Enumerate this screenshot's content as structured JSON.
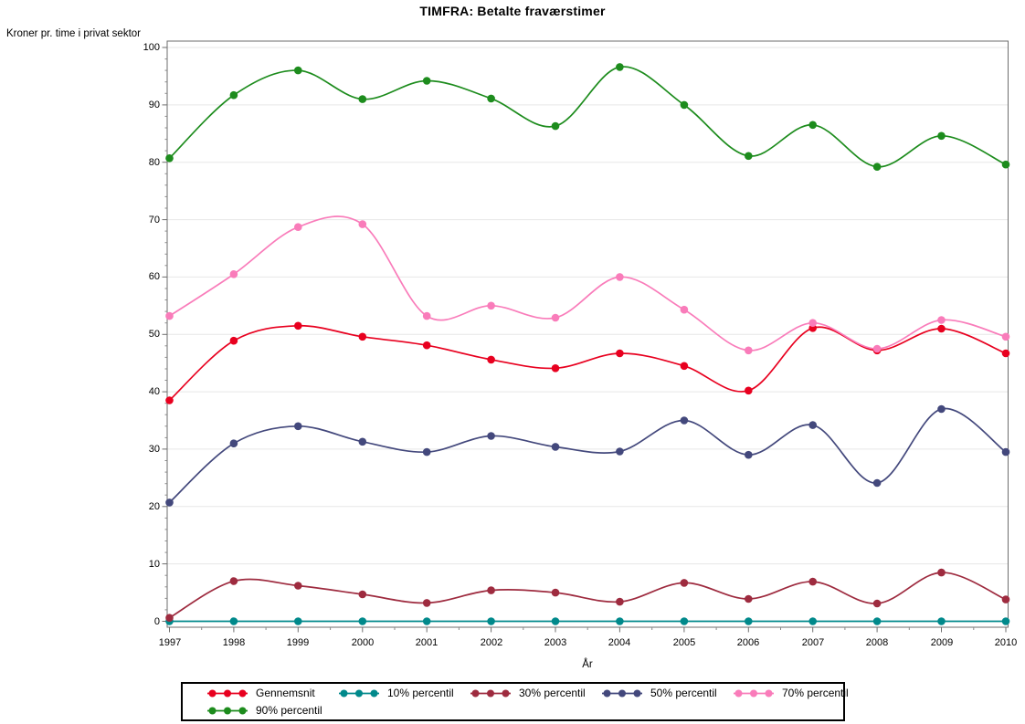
{
  "title": "TIMFRA: Betalte fraværstimer",
  "y_axis_label": "Kroner pr. time i privat sektor",
  "x_axis_label": "År",
  "chart_data": {
    "type": "line",
    "title": "TIMFRA: Betalte fraværstimer",
    "xlabel": "År",
    "ylabel": "Kroner pr. time i privat sektor",
    "x": [
      1997,
      1998,
      1999,
      2000,
      2001,
      2002,
      2003,
      2004,
      2005,
      2006,
      2007,
      2008,
      2009,
      2010
    ],
    "yticks": [
      0,
      10,
      20,
      30,
      40,
      50,
      60,
      70,
      80,
      90,
      100
    ],
    "ylim": [
      0,
      100
    ],
    "grid": "horizontal",
    "legend_position": "bottom",
    "marker": "filled-circle",
    "smooth": true,
    "series": [
      {
        "name": "Gennemsnit",
        "color": "#e8001f",
        "values": [
          38.5,
          48.9,
          51.5,
          49.6,
          48.1,
          45.6,
          44.1,
          46.7,
          44.5,
          40.2,
          51.1,
          47.2,
          51.0,
          46.7
        ]
      },
      {
        "name": "10% percentil",
        "color": "#00898b",
        "values": [
          0,
          0,
          0,
          0,
          0,
          0,
          0,
          0,
          0,
          0,
          0,
          0,
          0,
          0
        ]
      },
      {
        "name": "30% percentil",
        "color": "#9e2b3f",
        "values": [
          0.6,
          7.0,
          6.2,
          4.7,
          3.2,
          5.4,
          5.0,
          3.4,
          6.7,
          3.9,
          6.9,
          3.1,
          8.5,
          3.8
        ]
      },
      {
        "name": "50% percentil",
        "color": "#43487c",
        "values": [
          20.7,
          31.0,
          34.0,
          31.3,
          29.5,
          32.3,
          30.4,
          29.6,
          35.0,
          29.0,
          34.2,
          24.1,
          37.0,
          29.5
        ]
      },
      {
        "name": "70% percentil",
        "color": "#f97cba",
        "values": [
          53.2,
          60.5,
          68.7,
          69.2,
          53.2,
          55.0,
          52.9,
          60.0,
          54.3,
          47.2,
          52.0,
          47.5,
          52.5,
          49.6
        ]
      },
      {
        "name": "90% percentil",
        "color": "#1d8c1d",
        "values": [
          80.7,
          91.7,
          96.0,
          91.0,
          94.2,
          91.1,
          86.3,
          96.6,
          90.0,
          81.1,
          86.5,
          79.2,
          84.6,
          79.6
        ]
      }
    ]
  },
  "legend": {
    "rows": [
      [
        "Gennemsnit",
        "10% percentil",
        "30% percentil",
        "50% percentil",
        "70% percentil"
      ],
      [
        "90% percentil"
      ]
    ]
  }
}
